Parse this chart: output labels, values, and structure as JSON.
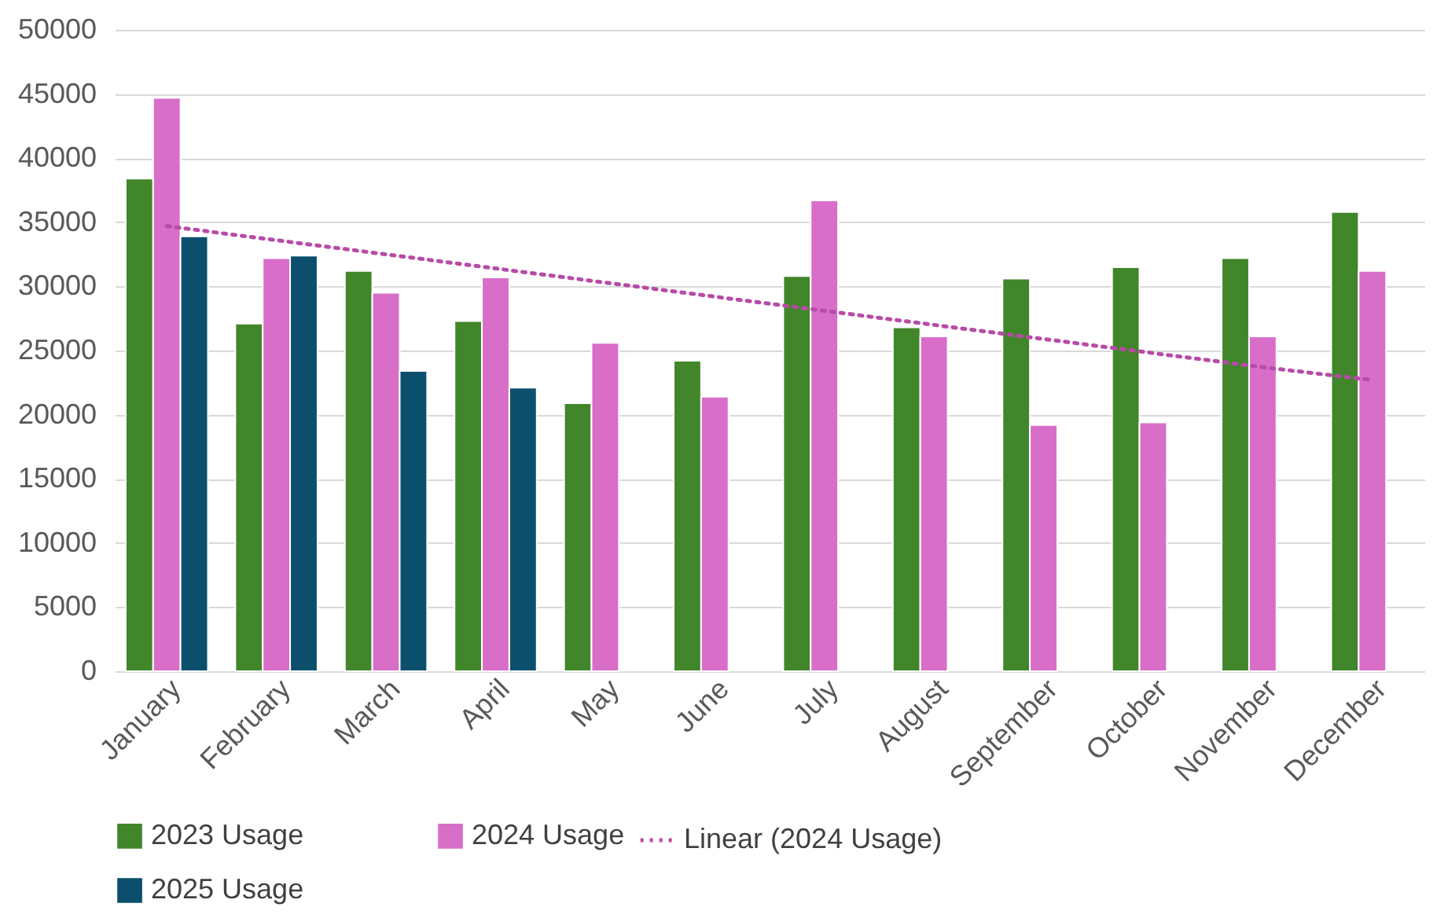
{
  "chart_data": {
    "type": "bar",
    "categories": [
      "January",
      "February",
      "March",
      "April",
      "May",
      "June",
      "July",
      "August",
      "September",
      "October",
      "November",
      "December"
    ],
    "series": [
      {
        "name": "2023 Usage",
        "color": "#41862a",
        "values": [
          38400,
          27100,
          31200,
          27300,
          20900,
          24200,
          30800,
          26800,
          30600,
          31500,
          32200,
          35800
        ]
      },
      {
        "name": "2024 Usage",
        "color": "#d86ec8",
        "values": [
          44700,
          32200,
          29500,
          30700,
          25600,
          21400,
          36700,
          26100,
          19200,
          19400,
          26100,
          31200
        ]
      },
      {
        "name": "2025 Usage",
        "color": "#0b4f6c",
        "values": [
          33900,
          32400,
          23400,
          22100,
          null,
          null,
          null,
          null,
          null,
          null,
          null,
          null
        ]
      },
      {
        "name": "Linear (2024 Usage)",
        "color": "#b84aa8",
        "type": "line",
        "line_style": "dotted",
        "values": [
          34700,
          33600,
          32500,
          31400,
          30300,
          29200,
          28100,
          27000,
          25900,
          24800,
          23700,
          22700
        ]
      }
    ],
    "ylim": [
      0,
      50000
    ],
    "yticks": [
      0,
      5000,
      10000,
      15000,
      20000,
      25000,
      30000,
      35000,
      40000,
      45000,
      50000
    ],
    "grid": "y",
    "legend": "bottom"
  }
}
